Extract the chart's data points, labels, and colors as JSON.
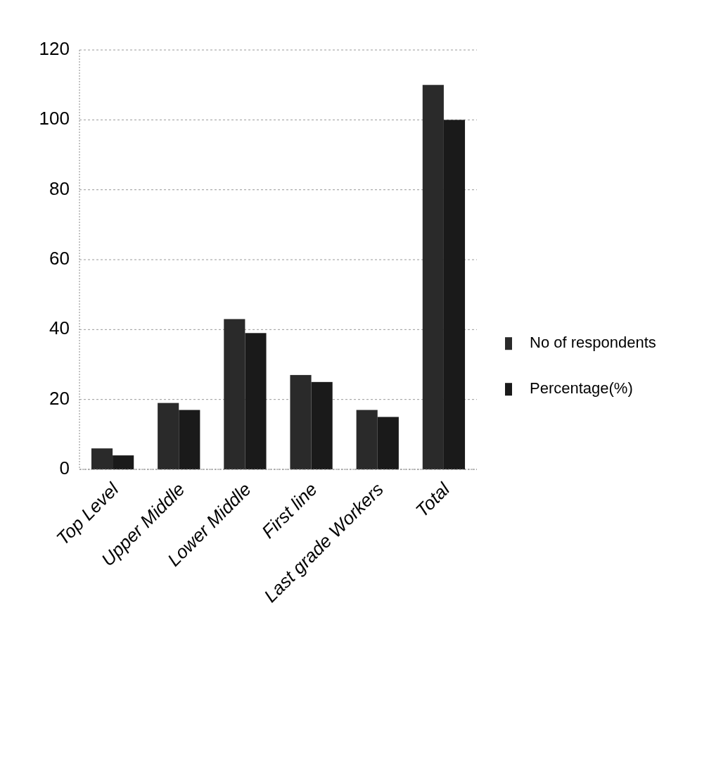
{
  "chart_data": {
    "type": "bar",
    "categories": [
      "Top Level",
      "Upper Middle",
      "Lower Middle",
      "First line",
      "Last grade Workers",
      "Total"
    ],
    "series": [
      {
        "name": "No of respondents",
        "color": "#2a2a2a",
        "values": [
          6,
          19,
          43,
          27,
          17,
          110
        ]
      },
      {
        "name": "Percentage(%)",
        "color": "#1a1a1a",
        "values": [
          4,
          17,
          39,
          25,
          15,
          100
        ]
      }
    ],
    "ylim": [
      0,
      120
    ],
    "yticks": [
      0,
      20,
      40,
      60,
      80,
      100,
      120
    ],
    "grid": "y",
    "legend": "right"
  }
}
